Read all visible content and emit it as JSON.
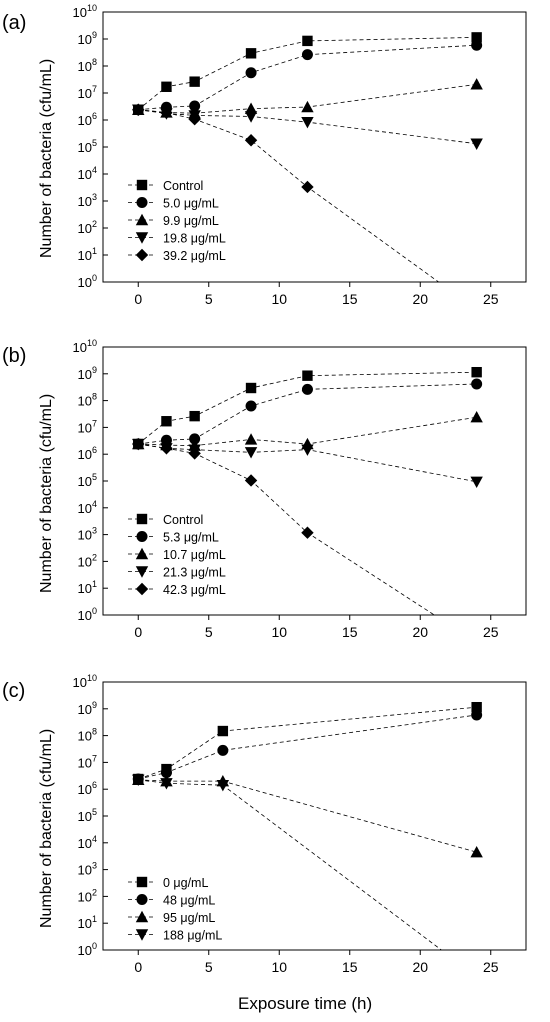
{
  "figure": {
    "xlabel": "Exposure time (h)"
  },
  "chart_data": [
    {
      "type": "line",
      "panel_label": "(a)",
      "ylabel": "Number of bacteria (cfu/mL)",
      "xlabel": "",
      "xlim": [
        -2.5,
        27.5
      ],
      "ylim": [
        0,
        10
      ],
      "y_scale": "log10",
      "x_ticks": [
        0,
        5,
        10,
        15,
        20,
        25
      ],
      "y_ticks": [
        0,
        1,
        2,
        3,
        4,
        5,
        6,
        7,
        8,
        9,
        10
      ],
      "y_tick_labels": [
        "10",
        "10",
        "10",
        "10",
        "10",
        "10",
        "10",
        "10",
        "10",
        "10",
        "10"
      ],
      "y_tick_exponents": [
        "0",
        "1",
        "2",
        "3",
        "4",
        "5",
        "6",
        "7",
        "8",
        "9",
        "10"
      ],
      "legend_position": "bottom-left",
      "series": [
        {
          "name": "Control",
          "marker": "square",
          "x": [
            0,
            2,
            4,
            8,
            12,
            24
          ],
          "y": [
            6.38,
            7.23,
            7.42,
            8.47,
            8.93,
            9.06
          ]
        },
        {
          "name": "5.0 μg/mL",
          "marker": "circle",
          "x": [
            0,
            2,
            4,
            8,
            12,
            24
          ],
          "y": [
            6.38,
            6.47,
            6.52,
            7.75,
            8.42,
            8.77
          ]
        },
        {
          "name": "9.9 μg/mL",
          "marker": "triangle-up",
          "x": [
            0,
            2,
            4,
            8,
            12,
            24
          ],
          "y": [
            6.38,
            6.28,
            6.25,
            6.42,
            6.48,
            7.32
          ]
        },
        {
          "name": "19.8 μg/mL",
          "marker": "triangle-down",
          "x": [
            0,
            2,
            4,
            8,
            12,
            24
          ],
          "y": [
            6.38,
            6.24,
            6.17,
            6.13,
            5.92,
            5.12
          ]
        },
        {
          "name": "39.2 μg/mL",
          "marker": "diamond",
          "x": [
            0,
            2,
            4,
            8,
            12,
            21.3
          ],
          "y": [
            6.38,
            6.27,
            6.03,
            5.25,
            3.52,
            0.0
          ],
          "last_point_marker": false
        }
      ]
    },
    {
      "type": "line",
      "panel_label": "(b)",
      "ylabel": "Number of bacteria (cfu/mL)",
      "xlabel": "",
      "xlim": [
        -2.5,
        27.5
      ],
      "ylim": [
        0,
        10
      ],
      "y_scale": "log10",
      "x_ticks": [
        0,
        5,
        10,
        15,
        20,
        25
      ],
      "y_ticks": [
        0,
        1,
        2,
        3,
        4,
        5,
        6,
        7,
        8,
        9,
        10
      ],
      "y_tick_labels": [
        "10",
        "10",
        "10",
        "10",
        "10",
        "10",
        "10",
        "10",
        "10",
        "10",
        "10"
      ],
      "y_tick_exponents": [
        "0",
        "1",
        "2",
        "3",
        "4",
        "5",
        "6",
        "7",
        "8",
        "9",
        "10"
      ],
      "legend_position": "bottom-left",
      "series": [
        {
          "name": "Control",
          "marker": "square",
          "x": [
            0,
            2,
            4,
            8,
            12,
            24
          ],
          "y": [
            6.38,
            7.23,
            7.42,
            8.47,
            8.93,
            9.06
          ]
        },
        {
          "name": "5.3 μg/mL",
          "marker": "circle",
          "x": [
            0,
            2,
            4,
            8,
            12,
            24
          ],
          "y": [
            6.38,
            6.52,
            6.57,
            7.8,
            8.42,
            8.62
          ]
        },
        {
          "name": "10.7 μg/mL",
          "marker": "triangle-up",
          "x": [
            0,
            2,
            4,
            8,
            12,
            24
          ],
          "y": [
            6.38,
            6.34,
            6.32,
            6.55,
            6.38,
            7.38
          ]
        },
        {
          "name": "21.3 μg/mL",
          "marker": "triangle-down",
          "x": [
            0,
            2,
            4,
            8,
            12,
            24
          ],
          "y": [
            6.38,
            6.22,
            6.17,
            6.07,
            6.17,
            4.97
          ]
        },
        {
          "name": "42.3 μg/mL",
          "marker": "diamond",
          "x": [
            0,
            2,
            4,
            8,
            12,
            21.0
          ],
          "y": [
            6.38,
            6.22,
            6.03,
            5.02,
            3.07,
            0.0
          ],
          "last_point_marker": false
        }
      ]
    },
    {
      "type": "line",
      "panel_label": "(c)",
      "ylabel": "Number of bacteria (cfu/mL)",
      "xlabel": "",
      "xlim": [
        -2.5,
        27.5
      ],
      "ylim": [
        0,
        10
      ],
      "y_scale": "log10",
      "x_ticks": [
        0,
        5,
        10,
        15,
        20,
        25
      ],
      "y_ticks": [
        0,
        1,
        2,
        3,
        4,
        5,
        6,
        7,
        8,
        9,
        10
      ],
      "y_tick_labels": [
        "10",
        "10",
        "10",
        "10",
        "10",
        "10",
        "10",
        "10",
        "10",
        "10",
        "10"
      ],
      "y_tick_exponents": [
        "0",
        "1",
        "2",
        "3",
        "4",
        "5",
        "6",
        "7",
        "8",
        "9",
        "10"
      ],
      "legend_position": "bottom-left",
      "series": [
        {
          "name": "0 μg/mL",
          "marker": "square",
          "x": [
            0,
            2,
            6,
            24
          ],
          "y": [
            6.38,
            6.75,
            8.17,
            9.06
          ]
        },
        {
          "name": "48 μg/mL",
          "marker": "circle",
          "x": [
            0,
            2,
            6,
            24
          ],
          "y": [
            6.38,
            6.62,
            7.45,
            8.77
          ]
        },
        {
          "name": "95 μg/mL",
          "marker": "triangle-up",
          "x": [
            0,
            2,
            6,
            24
          ],
          "y": [
            6.35,
            6.3,
            6.3,
            3.65
          ]
        },
        {
          "name": "188 μg/mL",
          "marker": "triangle-down",
          "x": [
            0,
            2,
            6,
            21.5
          ],
          "y": [
            6.35,
            6.22,
            6.15,
            0.0
          ],
          "last_point_marker": false
        }
      ]
    }
  ]
}
